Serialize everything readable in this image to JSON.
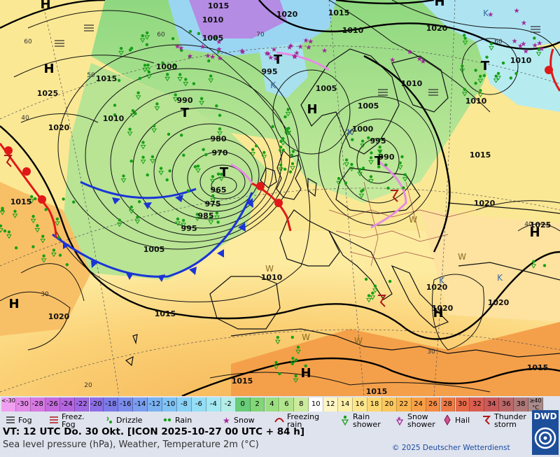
{
  "map": {
    "background_color": "#fbf2a0",
    "pressure_labels": [
      {
        "v": "1015"
      },
      {
        "v": "1020"
      },
      {
        "v": "1015"
      },
      {
        "v": "1010"
      },
      {
        "v": "1020"
      },
      {
        "v": "1010"
      },
      {
        "v": "1005"
      },
      {
        "v": "1000"
      },
      {
        "v": "995"
      },
      {
        "v": "990"
      },
      {
        "v": "1015"
      },
      {
        "v": "1010"
      },
      {
        "v": "1025"
      },
      {
        "v": "1020"
      },
      {
        "v": "1005"
      },
      {
        "v": "1005"
      },
      {
        "v": "1000"
      },
      {
        "v": "995"
      },
      {
        "v": "990"
      },
      {
        "v": "980"
      },
      {
        "v": "970"
      },
      {
        "v": "965"
      },
      {
        "v": "975"
      },
      {
        "v": "985"
      },
      {
        "v": "995"
      },
      {
        "v": "1005"
      },
      {
        "v": "1010"
      },
      {
        "v": "1015"
      },
      {
        "v": "1015"
      },
      {
        "v": "1015"
      },
      {
        "v": "1020"
      },
      {
        "v": "1015"
      },
      {
        "v": "1020"
      },
      {
        "v": "1025"
      },
      {
        "v": "1020"
      },
      {
        "v": "1020"
      },
      {
        "v": "1015"
      },
      {
        "v": "1015"
      },
      {
        "v": "1010"
      },
      {
        "v": "1010"
      },
      {
        "v": "1010"
      },
      {
        "v": "1020"
      }
    ],
    "grid_labels": [
      "60",
      "50",
      "40",
      "30",
      "20",
      "60",
      "70",
      "60",
      "30",
      "40",
      "20"
    ],
    "pressure_centers": [
      {
        "kind": "H"
      },
      {
        "kind": "H"
      },
      {
        "kind": "H"
      },
      {
        "kind": "H"
      },
      {
        "kind": "H"
      },
      {
        "kind": "H"
      },
      {
        "kind": "H"
      },
      {
        "kind": "H"
      },
      {
        "kind": "T"
      },
      {
        "kind": "T"
      },
      {
        "kind": "T"
      },
      {
        "kind": "T"
      },
      {
        "kind": "T"
      }
    ],
    "temperature_cell_labels": [
      {
        "v": "K"
      },
      {
        "v": "K"
      },
      {
        "v": "K"
      },
      {
        "v": "K"
      },
      {
        "v": "K"
      },
      {
        "v": "W"
      },
      {
        "v": "W"
      },
      {
        "v": "W"
      },
      {
        "v": "W"
      },
      {
        "v": "W"
      }
    ]
  },
  "legend": {
    "colorbar": [
      {
        "label": "<-30",
        "color": "#f0a0f0"
      },
      {
        "label": "-30",
        "color": "#e48ae8"
      },
      {
        "label": "-28",
        "color": "#d67ae2"
      },
      {
        "label": "-26",
        "color": "#c46ade"
      },
      {
        "label": "-24",
        "color": "#b466e0"
      },
      {
        "label": "-22",
        "color": "#a068e2"
      },
      {
        "label": "-20",
        "color": "#8c6ee6"
      },
      {
        "label": "-18",
        "color": "#7a7ae8"
      },
      {
        "label": "-16",
        "color": "#7a8cec"
      },
      {
        "label": "-14",
        "color": "#7a9ef0"
      },
      {
        "label": "-12",
        "color": "#7ab2f2"
      },
      {
        "label": "-10",
        "color": "#80c4f4"
      },
      {
        "label": "-8",
        "color": "#88d2f6"
      },
      {
        "label": "-6",
        "color": "#94def6"
      },
      {
        "label": "-4",
        "color": "#a4e8f2"
      },
      {
        "label": "-2",
        "color": "#b4eee6"
      },
      {
        "label": "0",
        "color": "#68cc78"
      },
      {
        "label": "2",
        "color": "#82d676"
      },
      {
        "label": "4",
        "color": "#9ade80"
      },
      {
        "label": "6",
        "color": "#b2e48c"
      },
      {
        "label": "8",
        "color": "#cceb9c"
      },
      {
        "label": "10",
        "color": "#ffffff"
      },
      {
        "label": "12",
        "color": "#fff6c6"
      },
      {
        "label": "14",
        "color": "#fef0a8"
      },
      {
        "label": "16",
        "color": "#fde68c"
      },
      {
        "label": "18",
        "color": "#fcd872"
      },
      {
        "label": "20",
        "color": "#fbc85e"
      },
      {
        "label": "22",
        "color": "#f9b450"
      },
      {
        "label": "24",
        "color": "#f8a046"
      },
      {
        "label": "26",
        "color": "#f48c44"
      },
      {
        "label": "28",
        "color": "#ef7a44"
      },
      {
        "label": "30",
        "color": "#e66a48"
      },
      {
        "label": "32",
        "color": "#da5e50"
      },
      {
        "label": "34",
        "color": "#cc5a5a"
      },
      {
        "label": "36",
        "color": "#bc6868"
      },
      {
        "label": "38",
        "color": "#b07878"
      },
      {
        "label": "≥40 °C",
        "color": "#a88a8a"
      }
    ],
    "symbols": [
      {
        "icon": "fog-icon",
        "label1": "Fog",
        "label2": ""
      },
      {
        "icon": "freezing-fog-icon",
        "label1": "Freez.",
        "label2": "Fog"
      },
      {
        "icon": "drizzle-icon",
        "label1": "Drizzle",
        "label2": ""
      },
      {
        "icon": "rain-icon",
        "label1": "Rain",
        "label2": ""
      },
      {
        "icon": "snow-icon",
        "label1": "Snow",
        "label2": ""
      },
      {
        "icon": "freezing-rain-icon",
        "label1": "Freezing",
        "label2": "rain"
      },
      {
        "icon": "rain-shower-icon",
        "label1": "Rain",
        "label2": "shower"
      },
      {
        "icon": "snow-shower-icon",
        "label1": "Snow",
        "label2": "shower"
      },
      {
        "icon": "hail-icon",
        "label1": "Hail",
        "label2": ""
      },
      {
        "icon": "thunderstorm-icon",
        "label1": "Thunder",
        "label2": "storm"
      }
    ],
    "vt_line": "VT: 12 UTC Do.  30 Okt. [ICON 2025-10-27  00 UTC + 84 h]",
    "subtitle": "Sea level pressure (hPa), Weather, Temperature 2m (°C)",
    "copyright": "© 2025 Deutscher Wetterdienst",
    "logo_text": "DWD"
  }
}
